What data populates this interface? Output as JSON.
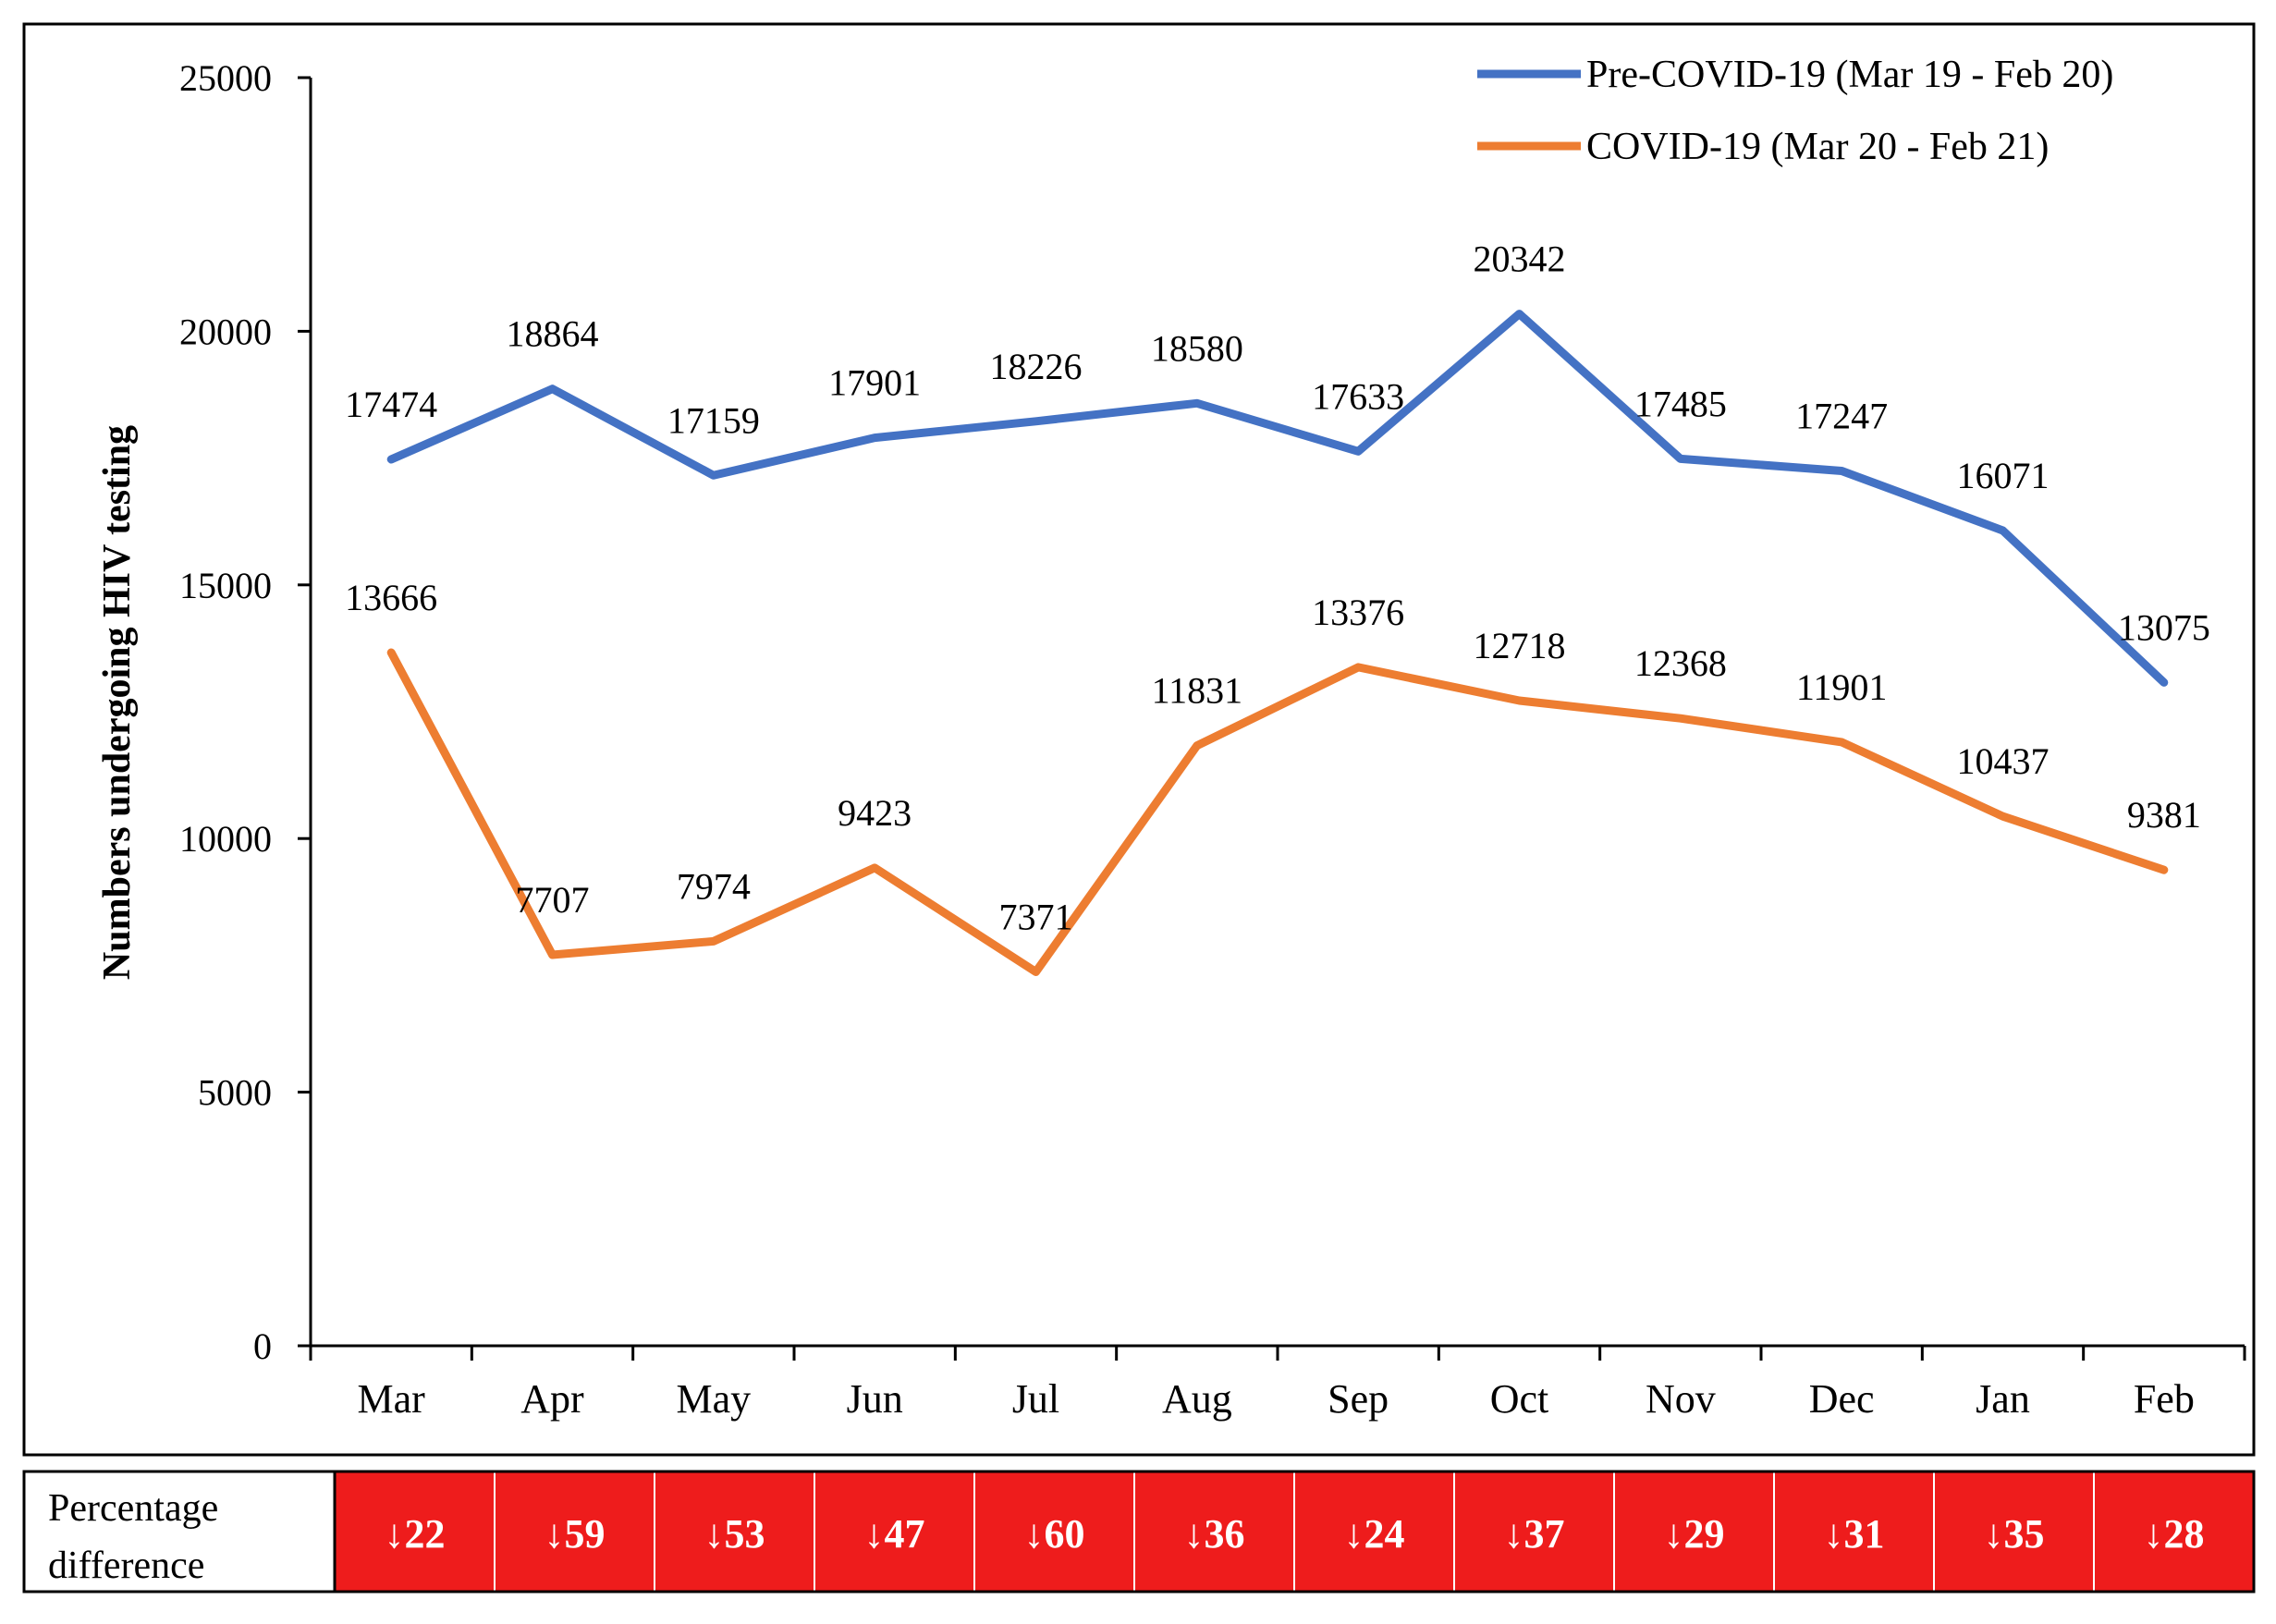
{
  "chart_data": {
    "type": "line",
    "title": "",
    "xlabel": "",
    "ylabel": "Numbers undergoing HIV testing",
    "ylim": [
      0,
      25000
    ],
    "yticks": [
      0,
      5000,
      10000,
      15000,
      20000,
      25000
    ],
    "grid": false,
    "legend_position": "top-right",
    "categories": [
      "Mar",
      "Apr",
      "May",
      "Jun",
      "Jul",
      "Aug",
      "Sep",
      "Oct",
      "Nov",
      "Dec",
      "Jan",
      "Feb"
    ],
    "series": [
      {
        "name": "Pre-COVID-19 (Mar 19 - Feb 20)",
        "color": "#4472C4",
        "values": [
          17474,
          18864,
          17159,
          17901,
          18226,
          18580,
          17633,
          20342,
          17485,
          17247,
          16071,
          13075
        ]
      },
      {
        "name": "COVID-19 (Mar 20 - Feb 21)",
        "color": "#ED7D31",
        "values": [
          13666,
          7707,
          7974,
          9423,
          7371,
          11831,
          13376,
          12718,
          12368,
          11901,
          10437,
          9381
        ]
      }
    ],
    "percentage_difference": {
      "label_line1": "Percentage",
      "label_line2": "difference",
      "arrow": "↓",
      "values": [
        22,
        59,
        53,
        47,
        60,
        36,
        24,
        37,
        29,
        31,
        35,
        28
      ],
      "cell_color": "#EE1C1C"
    }
  }
}
